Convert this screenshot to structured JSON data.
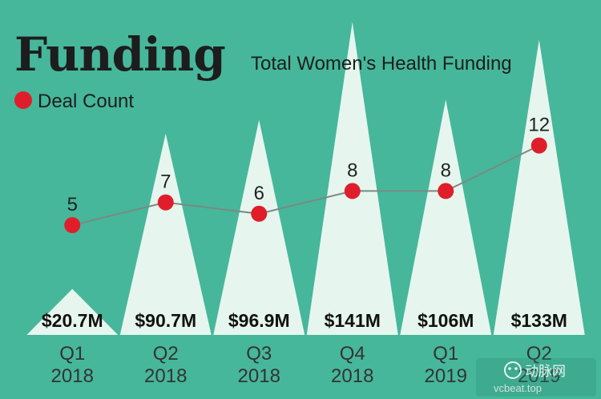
{
  "chart_data": {
    "type": "bar",
    "title": "Funding",
    "subtitle": "Total Women's Health Funding",
    "categories": [
      {
        "quarter": "Q1",
        "year": "2018"
      },
      {
        "quarter": "Q2",
        "year": "2018"
      },
      {
        "quarter": "Q3",
        "year": "2018"
      },
      {
        "quarter": "Q4",
        "year": "2018"
      },
      {
        "quarter": "Q1",
        "year": "2019"
      },
      {
        "quarter": "Q2",
        "year": "2019"
      }
    ],
    "series": [
      {
        "name": "Total Women's Health Funding",
        "values": [
          20.7,
          90.7,
          96.9,
          141,
          106,
          133
        ],
        "value_labels": [
          "$20.7M",
          "$90.7M",
          "$96.9M",
          "$141M",
          "$106M",
          "$133M"
        ],
        "units": "$M",
        "mark": "triangle",
        "color": "#e6f6ee"
      },
      {
        "name": "Deal Count",
        "values": [
          5,
          7,
          6,
          8,
          8,
          12
        ],
        "mark": "line-with-dots",
        "dot_color": "#e01e2b",
        "line_color": "#7a8a84"
      }
    ],
    "legend": {
      "label": "Deal Count",
      "position": "top-left"
    },
    "background_color": "#46b79b",
    "grid": false
  },
  "watermark": {
    "brand_cn": "动脉网",
    "url": "vcbeat.top"
  }
}
